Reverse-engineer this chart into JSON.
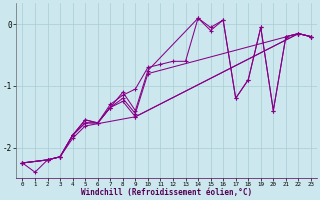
{
  "xlabel": "Windchill (Refroidissement éolien,°C)",
  "bg_color": "#cce8ee",
  "grid_color": "#aaccd4",
  "line_color": "#880088",
  "xlim": [
    -0.5,
    23.5
  ],
  "ylim": [
    -2.5,
    0.35
  ],
  "yticks": [
    0,
    -1,
    -2
  ],
  "xticks": [
    0,
    1,
    2,
    3,
    4,
    5,
    6,
    7,
    8,
    9,
    10,
    11,
    12,
    13,
    14,
    15,
    16,
    17,
    18,
    19,
    20,
    21,
    22,
    23
  ],
  "lines": [
    {
      "x": [
        0,
        1,
        2,
        3,
        4,
        5,
        6,
        7,
        8,
        9,
        10,
        11,
        12,
        13,
        14,
        15,
        16,
        17,
        18,
        19,
        20,
        21,
        22,
        23
      ],
      "y": [
        -2.25,
        -2.4,
        -2.2,
        -2.15,
        -1.8,
        -1.55,
        -1.6,
        -1.3,
        -1.15,
        -1.05,
        -0.7,
        -0.65,
        -0.6,
        -0.6,
        0.1,
        -0.05,
        0.07,
        -1.2,
        -0.9,
        -0.05,
        -1.4,
        -0.2,
        -0.15,
        -0.2
      ]
    },
    {
      "x": [
        0,
        2,
        3,
        4,
        5,
        6,
        7,
        8,
        9,
        10,
        14,
        15,
        16,
        17,
        18,
        19,
        20,
        21,
        22,
        23
      ],
      "y": [
        -2.25,
        -2.2,
        -2.15,
        -1.8,
        -1.55,
        -1.6,
        -1.35,
        -1.1,
        -1.4,
        -0.75,
        0.1,
        -0.1,
        0.07,
        -1.2,
        -0.9,
        -0.05,
        -1.4,
        -0.2,
        -0.15,
        -0.2
      ]
    },
    {
      "x": [
        0,
        2,
        3,
        4,
        5,
        6,
        7,
        8,
        9,
        10,
        22,
        23
      ],
      "y": [
        -2.25,
        -2.2,
        -2.15,
        -1.8,
        -1.6,
        -1.6,
        -1.35,
        -1.2,
        -1.45,
        -0.8,
        -0.15,
        -0.2
      ]
    },
    {
      "x": [
        0,
        2,
        3,
        4,
        5,
        6,
        7,
        8,
        9,
        22,
        23
      ],
      "y": [
        -2.25,
        -2.2,
        -2.15,
        -1.8,
        -1.6,
        -1.6,
        -1.35,
        -1.25,
        -1.5,
        -0.15,
        -0.2
      ]
    },
    {
      "x": [
        0,
        2,
        3,
        4,
        5,
        9,
        22,
        23
      ],
      "y": [
        -2.25,
        -2.2,
        -2.15,
        -1.85,
        -1.65,
        -1.5,
        -0.15,
        -0.2
      ]
    }
  ]
}
